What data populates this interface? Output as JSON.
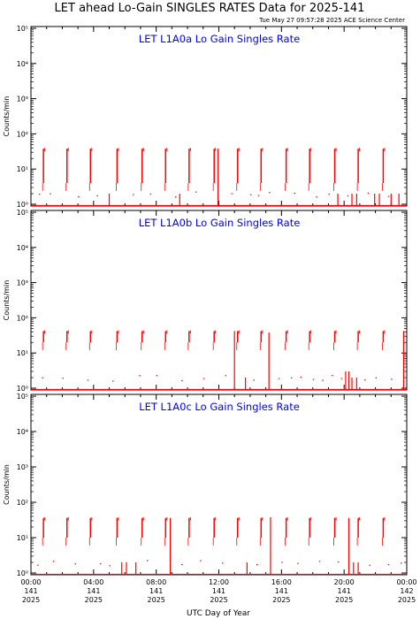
{
  "header": {
    "title": "LET ahead Lo-Gain SINGLES RATES Data for 2025-141",
    "timestamp": "Tue May 27 09:57:28 2025 ACE Science Center"
  },
  "colors": {
    "data": "#ff0000",
    "panel_title": "#0000ff",
    "axes": "#000000"
  },
  "x_axis": {
    "label": "UTC Day of Year",
    "ticks": [
      {
        "time": "00:00",
        "day": "141",
        "year": "2025",
        "hours": 0
      },
      {
        "time": "04:00",
        "day": "141",
        "year": "2025",
        "hours": 4
      },
      {
        "time": "08:00",
        "day": "141",
        "year": "2025",
        "hours": 8
      },
      {
        "time": "12:00",
        "day": "141",
        "year": "2025",
        "hours": 12
      },
      {
        "time": "16:00",
        "day": "141",
        "year": "2025",
        "hours": 16
      },
      {
        "time": "20:00",
        "day": "141",
        "year": "2025",
        "hours": 20
      },
      {
        "time": "00:00",
        "day": "142",
        "year": "2025",
        "hours": 24
      }
    ]
  },
  "chart_data": [
    {
      "type": "line",
      "title": "LET L1A0a Lo Gain Singles Rate",
      "ylabel": "Counts/min",
      "yscale": "log",
      "ylim": [
        1,
        100000
      ],
      "xlim_hours": [
        0,
        24
      ],
      "ytick_labels": [
        "10⁰",
        "10¹",
        "10²",
        "10³",
        "10⁴",
        "10⁵"
      ],
      "baseline": 0.9,
      "burst_times": [
        0.8,
        2.3,
        3.8,
        5.5,
        7.1,
        8.6,
        10.1,
        11.7,
        13.2,
        14.7,
        16.3,
        17.8,
        19.4,
        20.9,
        22.5
      ],
      "burst_range": [
        4,
        38
      ],
      "spikes": [
        {
          "t": 11.95,
          "v": 38
        },
        {
          "t": 21.95,
          "v": 2
        },
        {
          "t": 22.25,
          "v": 2
        },
        {
          "t": 5.0,
          "v": 2
        },
        {
          "t": 9.5,
          "v": 2
        },
        {
          "t": 19.6,
          "v": 2
        },
        {
          "t": 20.5,
          "v": 2
        },
        {
          "t": 20.8,
          "v": 2
        },
        {
          "t": 23.5,
          "v": 2
        },
        {
          "t": 23.0,
          "v": 2
        }
      ],
      "dots": [
        0.5,
        1.2,
        3.0,
        4.2,
        6.5,
        7.6,
        9.2,
        10.5,
        12.8,
        14.0,
        14.5,
        15.2,
        16.8,
        18.2,
        19.0,
        20.2,
        21.5,
        22.8
      ]
    },
    {
      "type": "line",
      "title": "LET L1A0b Lo Gain Singles Rate",
      "ylabel": "Counts/min",
      "yscale": "log",
      "ylim": [
        1,
        100000
      ],
      "xlim_hours": [
        0,
        24
      ],
      "ytick_labels": [
        "10⁰",
        "10¹",
        "10²",
        "10³",
        "10⁴",
        "10⁵"
      ],
      "baseline": 0.9,
      "burst_times": [
        0.8,
        2.3,
        3.8,
        5.5,
        7.1,
        8.6,
        10.1,
        11.7,
        13.2,
        14.7,
        16.3,
        17.8,
        19.4,
        20.9,
        22.5
      ],
      "burst_range": [
        20,
        42
      ],
      "spikes": [
        {
          "t": 13.0,
          "v": 42
        },
        {
          "t": 13.7,
          "v": 2
        },
        {
          "t": 15.2,
          "v": 38
        },
        {
          "t": 20.1,
          "v": 3
        },
        {
          "t": 20.3,
          "v": 3
        },
        {
          "t": 20.5,
          "v": 2
        },
        {
          "t": 20.8,
          "v": 2
        },
        {
          "t": 23.8,
          "v": 42
        }
      ],
      "dots": [
        0.7,
        2.0,
        3.6,
        5.2,
        6.9,
        8.0,
        9.6,
        11.0,
        12.4,
        14.2,
        15.8,
        16.6,
        17.2,
        18.0,
        18.6,
        19.2,
        19.8,
        21.3,
        22.0,
        23.0
      ]
    },
    {
      "type": "line",
      "title": "LET L1A0c Lo Gain Singles Rate",
      "ylabel": "Counts/min",
      "yscale": "log",
      "ylim": [
        1,
        100000
      ],
      "xlim_hours": [
        0,
        24
      ],
      "ytick_labels": [
        "10⁰",
        "10¹",
        "10²",
        "10³",
        "10⁴",
        "10⁵"
      ],
      "baseline": 0.9,
      "burst_times": [
        0.8,
        2.3,
        3.8,
        5.5,
        7.1,
        8.6,
        10.1,
        11.7,
        13.2,
        14.7,
        16.3,
        17.8,
        19.4,
        20.9,
        22.5
      ],
      "burst_range": [
        10,
        36
      ],
      "spikes": [
        {
          "t": 5.8,
          "v": 2
        },
        {
          "t": 6.1,
          "v": 2
        },
        {
          "t": 6.7,
          "v": 2
        },
        {
          "t": 8.9,
          "v": 36
        },
        {
          "t": 13.8,
          "v": 2
        },
        {
          "t": 15.3,
          "v": 38
        },
        {
          "t": 20.3,
          "v": 36
        },
        {
          "t": 20.6,
          "v": 2
        },
        {
          "t": 20.9,
          "v": 2
        }
      ],
      "dots": [
        0.4,
        1.4,
        2.8,
        4.4,
        5.0,
        7.4,
        9.6,
        10.8,
        12.2,
        14.4,
        16.0,
        17.0,
        18.4,
        19.6,
        21.6,
        22.8,
        23.6
      ]
    }
  ]
}
